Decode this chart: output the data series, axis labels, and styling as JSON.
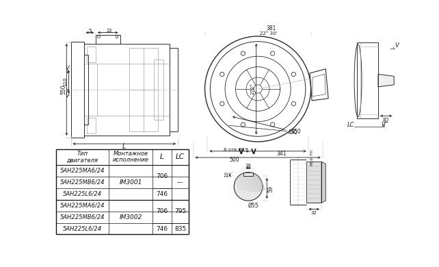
{
  "bg_color": "#ffffff",
  "line_color": "#2a2a2a",
  "dim_color": "#1a1a1a",
  "table_header": [
    "Тип\nдвигателя",
    "Монтажное\nисполнение",
    "L",
    "LC"
  ],
  "motor_types": [
    "5АН225МА6/24",
    "5АН225МВ6/24",
    "5АН225L6/24",
    "5АН225МА6/24",
    "5АН225МВ6/24",
    "5АН225L6/24"
  ],
  "montage": [
    "IM3001",
    "IM3002"
  ],
  "L_vals": [
    "706",
    "746",
    "706",
    "746"
  ],
  "LC_vals": [
    "---",
    "795",
    "835"
  ]
}
